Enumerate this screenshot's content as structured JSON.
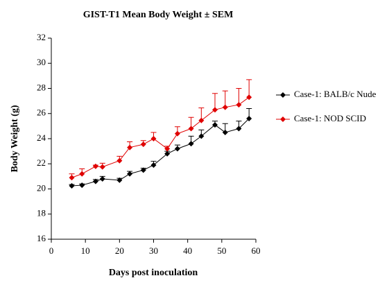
{
  "chart_data": {
    "type": "line",
    "title": "GIST-T1 Mean Body Weight ± SEM",
    "x_label": "Days post inoculation",
    "y_label": "Body Weight (g)",
    "xlim": [
      0,
      60
    ],
    "xticks": [
      0,
      10,
      20,
      30,
      40,
      50,
      60
    ],
    "ylim": [
      16,
      32
    ],
    "yticks": [
      16,
      18,
      20,
      22,
      24,
      26,
      28,
      30,
      32
    ],
    "grid": false,
    "legend": "right",
    "series": [
      {
        "name": "Case-1: BALB/c Nude",
        "color": "#000000",
        "x": [
          6,
          9,
          13,
          15,
          20,
          23,
          27,
          30,
          34,
          37,
          41,
          44,
          48,
          51,
          55,
          58
        ],
        "values": [
          20.25,
          20.3,
          20.6,
          20.8,
          20.7,
          21.2,
          21.5,
          21.9,
          22.8,
          23.2,
          23.6,
          24.2,
          25.1,
          24.5,
          24.8,
          25.6
        ],
        "errors": [
          0.1,
          0.1,
          0.15,
          0.2,
          0.15,
          0.2,
          0.15,
          0.3,
          0.2,
          0.3,
          0.6,
          0.5,
          0.3,
          0.7,
          0.6,
          0.8
        ]
      },
      {
        "name": "Case-1: NOD SCID",
        "color": "#e00000",
        "x": [
          6,
          9,
          13,
          15,
          20,
          23,
          27,
          30,
          34,
          37,
          41,
          44,
          48,
          51,
          55,
          58
        ],
        "values": [
          20.9,
          21.2,
          21.8,
          21.75,
          22.25,
          23.3,
          23.55,
          24.0,
          23.2,
          24.4,
          24.8,
          25.45,
          26.3,
          26.5,
          26.7,
          27.3
        ],
        "errors": [
          0.3,
          0.4,
          0.1,
          0.3,
          0.35,
          0.45,
          0.3,
          0.5,
          0.2,
          0.55,
          0.9,
          1.0,
          1.3,
          1.3,
          1.3,
          1.4
        ]
      }
    ]
  }
}
